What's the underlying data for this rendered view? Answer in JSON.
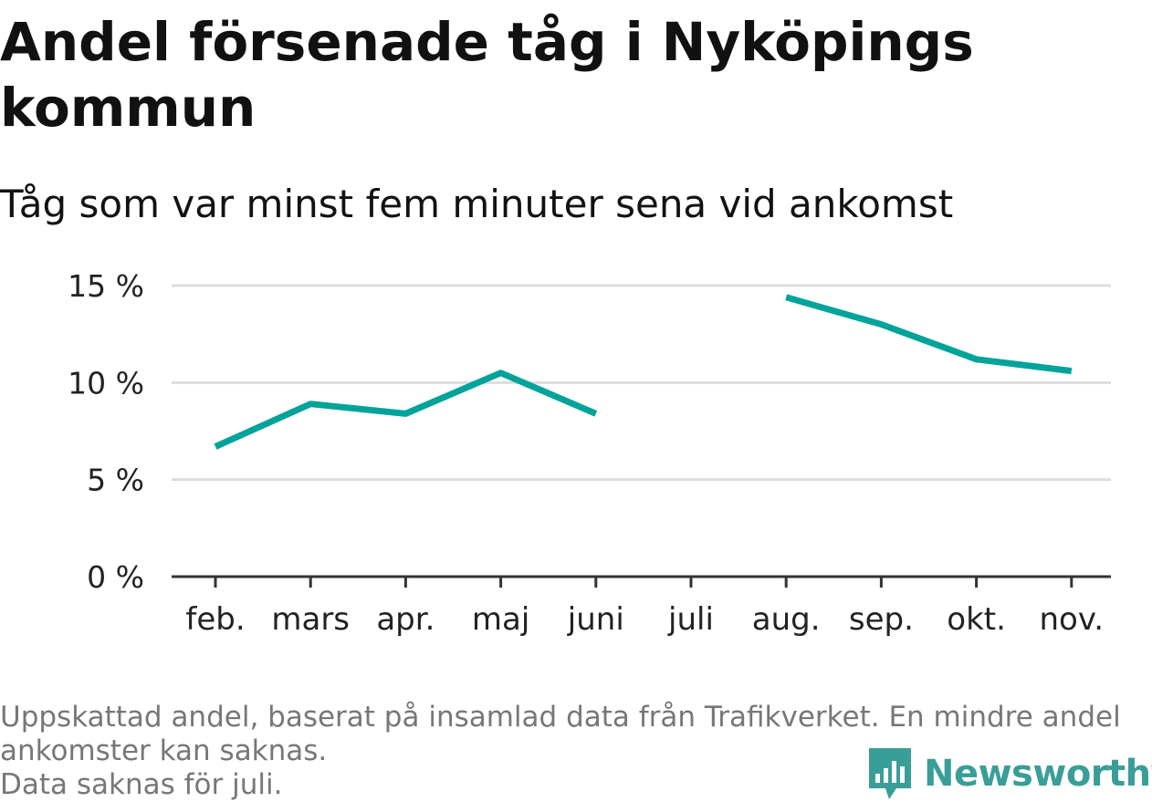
{
  "chart_data": {
    "type": "line",
    "title": "Andel försenade tåg i Nyköpings kommun",
    "subtitle": "Tåg som var minst fem minuter sena vid ankomst",
    "categories": [
      "feb.",
      "mars",
      "apr.",
      "maj",
      "juni",
      "juli",
      "aug.",
      "sep.",
      "okt.",
      "nov."
    ],
    "series": [
      {
        "values": [
          6.7,
          8.9,
          8.4,
          10.5,
          8.4,
          null,
          14.4,
          13.0,
          11.2,
          10.6
        ],
        "color": "#00a39a"
      }
    ],
    "yticks": [
      0,
      5,
      10,
      15
    ],
    "ytick_labels": [
      "0 %",
      "5 %",
      "10 %",
      "15 %"
    ],
    "ylim": [
      0,
      15
    ],
    "grid": true,
    "legend": "none"
  },
  "footer": {
    "note_line1": "Uppskattad andel, baserat på insamlad data från Trafikverket. En mindre andel",
    "note_line2": "ankomster kan saknas.",
    "note_line3": "Data saknas för juli."
  },
  "logo": {
    "text": "Newsworthy",
    "icon": "bar-chart-speech-bubble-icon",
    "color": "#3a9e98"
  }
}
